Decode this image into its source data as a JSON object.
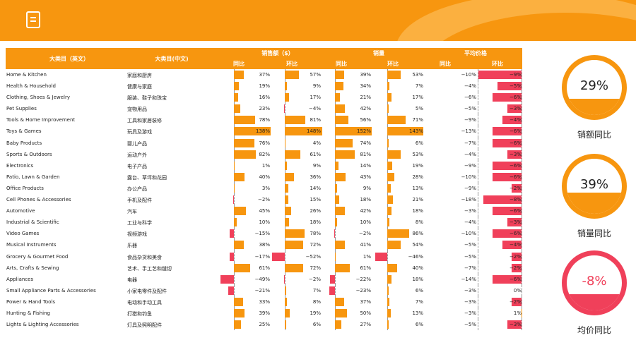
{
  "header": {
    "icon": "document-icon"
  },
  "columns": {
    "en": "大类目（英文）",
    "cn": "大类目(中文)",
    "sales": "销售额（$）",
    "qty": "销量",
    "price": "平均价格",
    "yoy": "同比",
    "mom": "环比"
  },
  "rows": [
    {
      "en": "Home & Kitchen",
      "cn": "家庭和厨房",
      "s_yoy": 37,
      "s_mom": 57,
      "q_yoy": 39,
      "q_mom": 53,
      "p_yoy": -10,
      "p_mom": -9
    },
    {
      "en": "Health & Household",
      "cn": "健康与家庭",
      "s_yoy": 19,
      "s_mom": 9,
      "q_yoy": 34,
      "q_mom": 7,
      "p_yoy": -4,
      "p_mom": -5
    },
    {
      "en": "Clothing, Shoes & Jewelry",
      "cn": "服装、鞋子和珠宝",
      "s_yoy": 16,
      "s_mom": 17,
      "q_yoy": 21,
      "q_mom": 17,
      "p_yoy": -6,
      "p_mom": -6
    },
    {
      "en": "Pet Supplies",
      "cn": "宠物用品",
      "s_yoy": 23,
      "s_mom": -4,
      "q_yoy": 42,
      "q_mom": 5,
      "p_yoy": -5,
      "p_mom": -3
    },
    {
      "en": "Tools & Home Improvement",
      "cn": "工具和家居装修",
      "s_yoy": 78,
      "s_mom": 81,
      "q_yoy": 56,
      "q_mom": 71,
      "p_yoy": -9,
      "p_mom": -4
    },
    {
      "en": "Toys & Games",
      "cn": "玩具及游戏",
      "s_yoy": 138,
      "s_mom": 148,
      "q_yoy": 152,
      "q_mom": 143,
      "p_yoy": -13,
      "p_mom": -6
    },
    {
      "en": "Baby Products",
      "cn": "婴儿产品",
      "s_yoy": 76,
      "s_mom": 4,
      "q_yoy": 74,
      "q_mom": 6,
      "p_yoy": -7,
      "p_mom": -6
    },
    {
      "en": "Sports & Outdoors",
      "cn": "运动户外",
      "s_yoy": 82,
      "s_mom": 61,
      "q_yoy": 81,
      "q_mom": 53,
      "p_yoy": -4,
      "p_mom": -3
    },
    {
      "en": "Electronics",
      "cn": "电子产品",
      "s_yoy": 1,
      "s_mom": 9,
      "q_yoy": 14,
      "q_mom": 19,
      "p_yoy": -9,
      "p_mom": -6
    },
    {
      "en": "Patio, Lawn & Garden",
      "cn": "露台、草坪和花园",
      "s_yoy": 40,
      "s_mom": 36,
      "q_yoy": 43,
      "q_mom": 28,
      "p_yoy": -10,
      "p_mom": -6
    },
    {
      "en": "Office Products",
      "cn": "办公产品",
      "s_yoy": 3,
      "s_mom": 14,
      "q_yoy": 9,
      "q_mom": 13,
      "p_yoy": -9,
      "p_mom": -2
    },
    {
      "en": "Cell Phones & Accessories",
      "cn": "手机及配件",
      "s_yoy": -2,
      "s_mom": 15,
      "q_yoy": 18,
      "q_mom": 21,
      "p_yoy": -18,
      "p_mom": -8
    },
    {
      "en": "Automotive",
      "cn": "汽车",
      "s_yoy": 45,
      "s_mom": 26,
      "q_yoy": 42,
      "q_mom": 18,
      "p_yoy": -3,
      "p_mom": -6
    },
    {
      "en": "Industrial & Scientific",
      "cn": "工业与科学",
      "s_yoy": 10,
      "s_mom": 18,
      "q_yoy": 10,
      "q_mom": 8,
      "p_yoy": -4,
      "p_mom": -3
    },
    {
      "en": "Video Games",
      "cn": "视频游戏",
      "s_yoy": -15,
      "s_mom": 78,
      "q_yoy": -2,
      "q_mom": 86,
      "p_yoy": -10,
      "p_mom": -6
    },
    {
      "en": "Musical Instruments",
      "cn": "乐器",
      "s_yoy": 38,
      "s_mom": 72,
      "q_yoy": 41,
      "q_mom": 54,
      "p_yoy": -5,
      "p_mom": -4
    },
    {
      "en": "Grocery & Gourmet Food",
      "cn": "食品杂货和美食",
      "s_yoy": -17,
      "s_mom": -52,
      "q_yoy": 1,
      "q_mom": -46,
      "p_yoy": -5,
      "p_mom": -2
    },
    {
      "en": "Arts, Crafts & Sewing",
      "cn": "艺术、手工艺和缝纫",
      "s_yoy": 61,
      "s_mom": 72,
      "q_yoy": 61,
      "q_mom": 40,
      "p_yoy": -7,
      "p_mom": -2
    },
    {
      "en": "Appliances",
      "cn": "电器",
      "s_yoy": -49,
      "s_mom": -2,
      "q_yoy": -22,
      "q_mom": 18,
      "p_yoy": -14,
      "p_mom": -6
    },
    {
      "en": "Small Appliance Parts & Accessories",
      "cn": "小家电零件及配件",
      "s_yoy": -21,
      "s_mom": 7,
      "q_yoy": -23,
      "q_mom": 6,
      "p_yoy": -3,
      "p_mom": 0
    },
    {
      "en": "Power & Hand Tools",
      "cn": "电动和手动工具",
      "s_yoy": 33,
      "s_mom": 8,
      "q_yoy": 37,
      "q_mom": 7,
      "p_yoy": -3,
      "p_mom": -2
    },
    {
      "en": "Hunting & Fishing",
      "cn": "打猎和钓鱼",
      "s_yoy": 39,
      "s_mom": 19,
      "q_yoy": 50,
      "q_mom": 13,
      "p_yoy": -3,
      "p_mom": 1
    },
    {
      "en": "Lights & Lighting Accessories",
      "cn": "灯具及照明配件",
      "s_yoy": 25,
      "s_mom": 6,
      "q_yoy": 27,
      "q_mom": 6,
      "p_yoy": -5,
      "p_mom": -3
    }
  ],
  "gauges": [
    {
      "value": "29%",
      "fraction": 0.29,
      "label": "销额同比",
      "color": "#f7960f",
      "text_color": "#222"
    },
    {
      "value": "39%",
      "fraction": 0.39,
      "label": "销量同比",
      "color": "#f7960f",
      "text_color": "#222"
    },
    {
      "value": "-8%",
      "fraction": 0.3,
      "label": "均价同比",
      "color": "#f0405a",
      "text_color": "#f0405a"
    }
  ],
  "colors": {
    "accent": "#f7960f",
    "positive": "#f7960f",
    "negative": "#f0405a"
  }
}
